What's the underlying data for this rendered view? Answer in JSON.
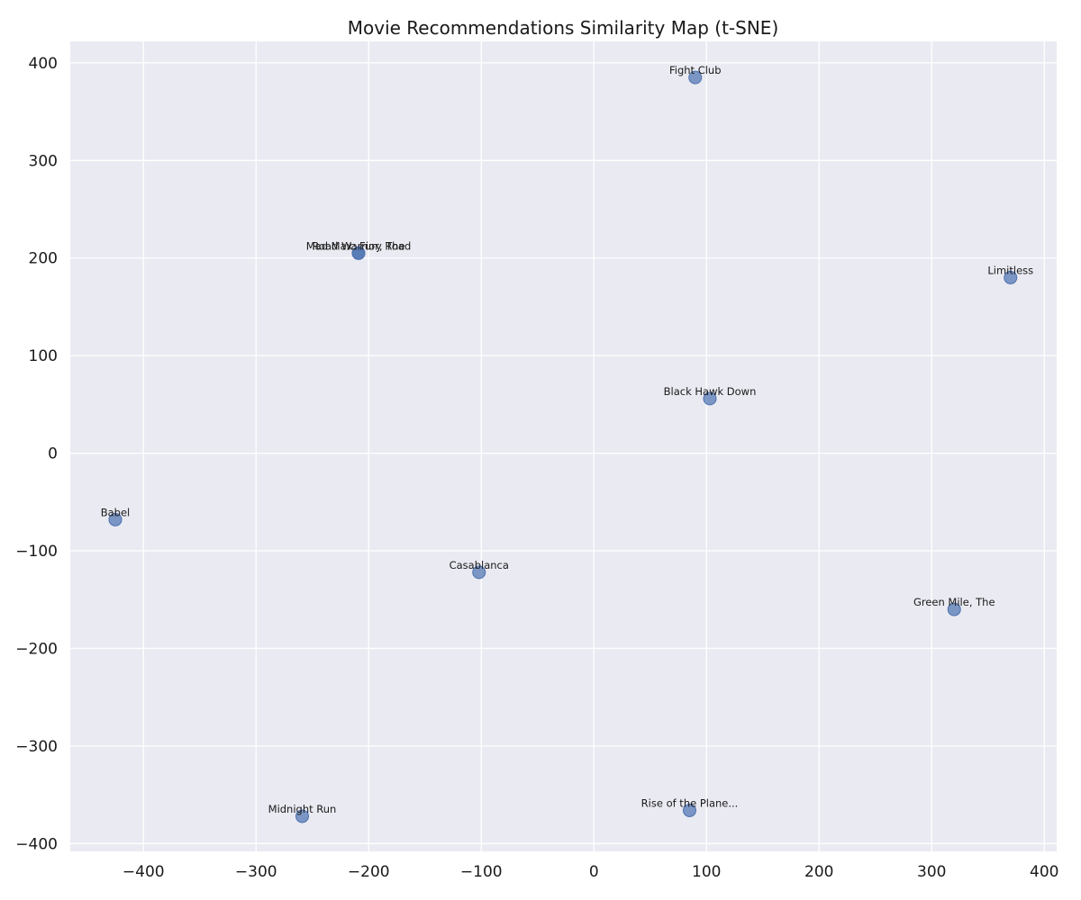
{
  "chart_data": {
    "type": "scatter",
    "title": "Movie Recommendations Similarity Map (t-SNE)",
    "xlabel": "",
    "ylabel": "",
    "xlim": [
      -465,
      411
    ],
    "ylim": [
      -408,
      422
    ],
    "grid": true,
    "xticks": [
      -400,
      -300,
      -200,
      -100,
      0,
      100,
      200,
      300,
      400
    ],
    "yticks": [
      -400,
      -300,
      -200,
      -100,
      0,
      100,
      200,
      300,
      400
    ],
    "xtick_labels": [
      "−400",
      "−300",
      "−200",
      "−100",
      "0",
      "100",
      "200",
      "300",
      "400"
    ],
    "ytick_labels": [
      "−400",
      "−300",
      "−200",
      "−100",
      "0",
      "100",
      "200",
      "300",
      "400"
    ],
    "colors": {
      "background": "#eaeaf2",
      "grid": "#ffffff",
      "point": "#4c72b0"
    },
    "points": [
      {
        "label": "Fight Club",
        "x": 90,
        "y": 385
      },
      {
        "label": "Mad Max: Fury Road",
        "x": -209,
        "y": 205
      },
      {
        "label": "Road Warrior, The",
        "x": -209,
        "y": 205
      },
      {
        "label": "Limitless",
        "x": 370,
        "y": 180
      },
      {
        "label": "Black Hawk Down",
        "x": 103,
        "y": 56
      },
      {
        "label": "Babel",
        "x": -425,
        "y": -68
      },
      {
        "label": "Casablanca",
        "x": -102,
        "y": -122
      },
      {
        "label": "Green Mile, The",
        "x": 320,
        "y": -160
      },
      {
        "label": "Rise of the Plane...",
        "x": 85,
        "y": -366
      },
      {
        "label": "Midnight Run",
        "x": -259,
        "y": -372
      }
    ]
  }
}
